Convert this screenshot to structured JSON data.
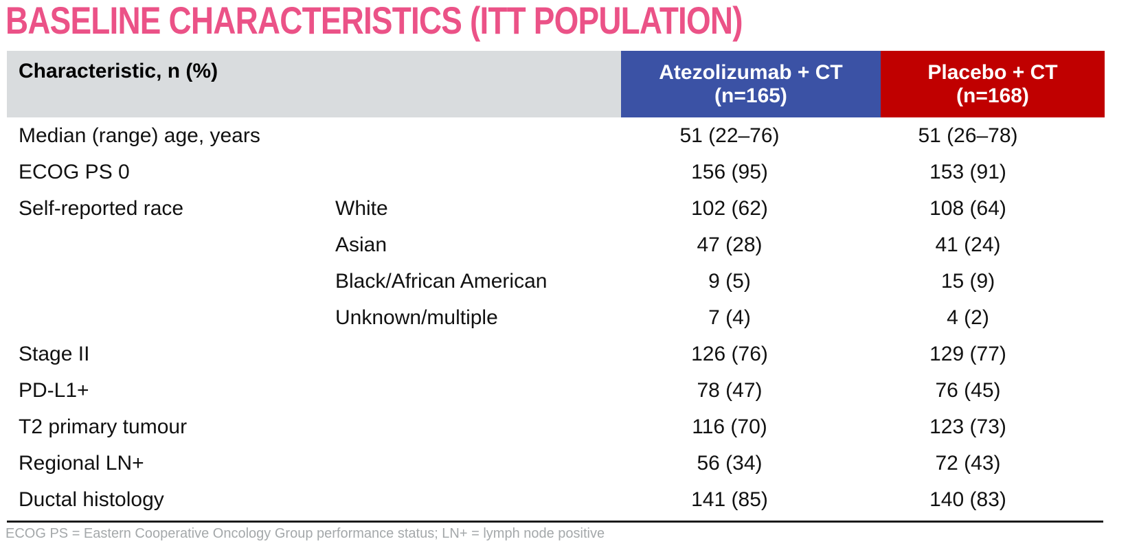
{
  "title": "BASELINE CHARACTERISTICS (ITT POPULATION)",
  "table": {
    "headers": {
      "characteristic": "Characteristic, n (%)",
      "atezolizumab": {
        "line1": "Atezolizumab + CT",
        "line2": "(n=165)"
      },
      "placebo": {
        "line1": "Placebo + CT",
        "line2": "(n=168)"
      }
    },
    "rows": [
      {
        "label": "Median (range) age, years",
        "sublabel": "",
        "atezolizumab": "51 (22–76)",
        "placebo": "51 (26–78)"
      },
      {
        "label": "ECOG PS 0",
        "sublabel": "",
        "atezolizumab": "156 (95)",
        "placebo": "153 (91)"
      },
      {
        "label": "Self-reported race",
        "sublabel": "White",
        "atezolizumab": "102 (62)",
        "placebo": "108 (64)"
      },
      {
        "label": "",
        "sublabel": "Asian",
        "atezolizumab": "47 (28)",
        "placebo": "41 (24)"
      },
      {
        "label": "",
        "sublabel": "Black/African American",
        "atezolizumab": "9 (5)",
        "placebo": "15 (9)"
      },
      {
        "label": "",
        "sublabel": "Unknown/multiple",
        "atezolizumab": "7 (4)",
        "placebo": "4 (2)"
      },
      {
        "label": "Stage II",
        "sublabel": "",
        "atezolizumab": "126 (76)",
        "placebo": "129 (77)"
      },
      {
        "label": "PD-L1+",
        "sublabel": "",
        "atezolizumab": "78 (47)",
        "placebo": "76 (45)"
      },
      {
        "label": "T2 primary tumour",
        "sublabel": "",
        "atezolizumab": "116 (70)",
        "placebo": "123 (73)"
      },
      {
        "label": "Regional LN+",
        "sublabel": "",
        "atezolizumab": "56 (34)",
        "placebo": "72 (43)"
      },
      {
        "label": "Ductal histology",
        "sublabel": "",
        "atezolizumab": "141 (85)",
        "placebo": "140 (83)"
      }
    ]
  },
  "footnote": "ECOG PS = Eastern Cooperative Oncology Group performance status; LN+ = lymph node positive",
  "colors": {
    "title_pink": "#EB5287",
    "atezolizumab_blue": "#3B52A5",
    "placebo_red": "#C00000",
    "header_gray": "#D9DCDE",
    "footnote_gray": "#A4A8AA"
  }
}
